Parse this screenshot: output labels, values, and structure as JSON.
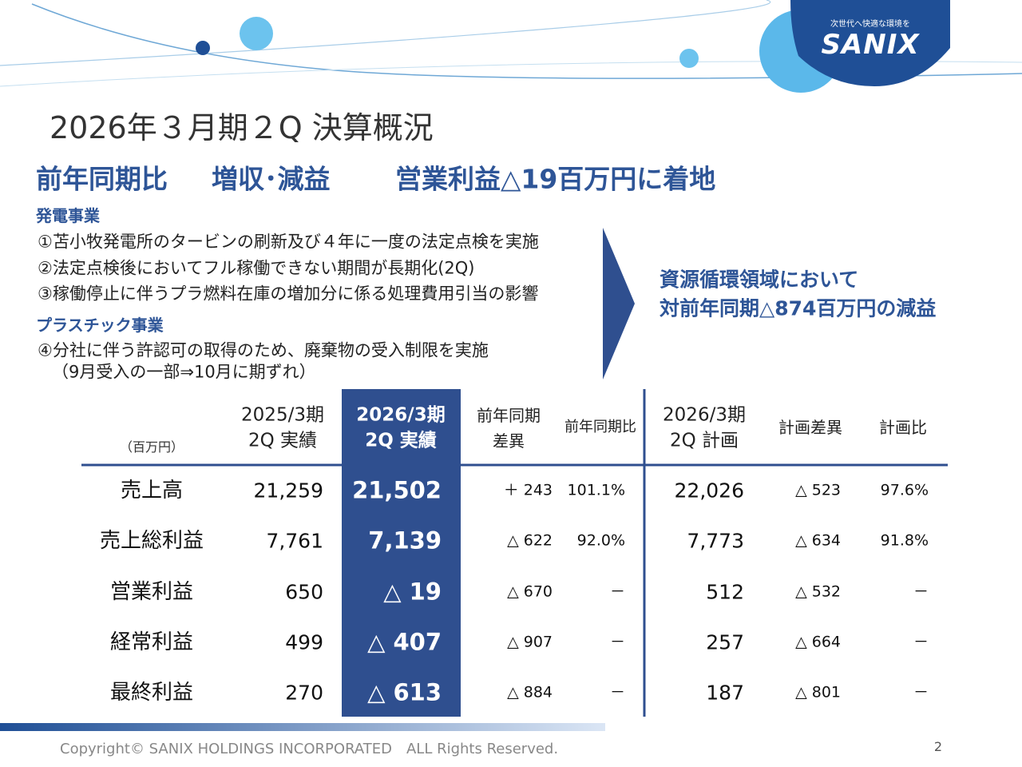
{
  "logo": {
    "tagline": "次世代へ快適な環境を",
    "name": "SANIX"
  },
  "title": "2026年３月期２Q 決算概況",
  "headline": [
    "前年同期比",
    "増収･減益",
    "営業利益△19百万円に着地"
  ],
  "sections": [
    {
      "heading": "発電事業",
      "items": [
        "①苫小牧発電所のタービンの刷新及び４年に一度の法定点検を実施",
        "②法定点検後においてフル稼働できない期間が長期化(2Q)",
        "③稼働停止に伴うプラ燃料在庫の増加分に係る処理費用引当の影響"
      ]
    },
    {
      "heading": "プラスチック事業",
      "items": [
        "④分社に伴う許認可の取得のため、廃棄物の受入制限を実施",
        "（9月受入の一部⇒10月に期ずれ）"
      ]
    }
  ],
  "callout": [
    "資源循環領域において",
    "対前年同期△874百万円の減益"
  ],
  "table": {
    "unit": "（百万円）",
    "columns": [
      [
        "2025/3期",
        "2Q 実績"
      ],
      [
        "2026/3期",
        "2Q 実績"
      ],
      [
        "前年同期",
        "差異"
      ],
      [
        "前年同期比"
      ],
      [
        "2026/3期",
        "2Q 計画"
      ],
      [
        "計画差異"
      ],
      [
        "計画比"
      ]
    ],
    "rows": [
      [
        "売上高",
        "21,259",
        "21,502",
        "＋ 243",
        "101.1%",
        "22,026",
        "△ 523",
        "97.6%"
      ],
      [
        "売上総利益",
        "7,761",
        "7,139",
        "△ 622",
        "92.0%",
        "7,773",
        "△ 634",
        "91.8%"
      ],
      [
        "営業利益",
        "650",
        "△ 19",
        "△ 670",
        "－",
        "512",
        "△ 532",
        "－"
      ],
      [
        "経常利益",
        "499",
        "△ 407",
        "△ 907",
        "－",
        "257",
        "△ 664",
        "－"
      ],
      [
        "最終利益",
        "270",
        "△ 613",
        "△ 884",
        "－",
        "187",
        "△ 801",
        "－"
      ]
    ]
  },
  "footer": {
    "copyright": "Copyright© SANIX HOLDINGS INCORPORATED　ALL Rights Reserved.",
    "page": "2"
  }
}
